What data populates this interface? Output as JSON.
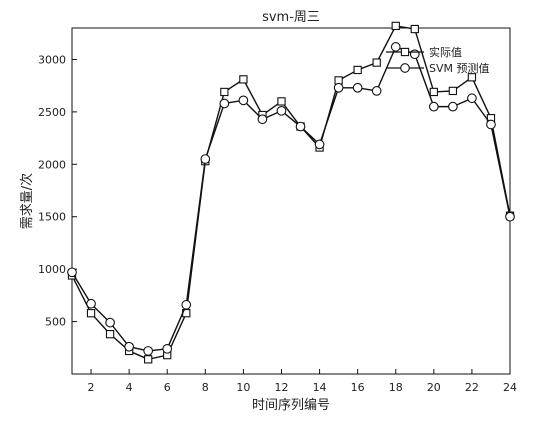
{
  "chart_data": {
    "type": "line",
    "title": "svm-周三",
    "xlabel": "时间序列编号",
    "ylabel": "需求量/次",
    "xlim": [
      1,
      24
    ],
    "ylim": [
      0,
      3300
    ],
    "xticks": [
      2,
      4,
      6,
      8,
      10,
      12,
      14,
      16,
      18,
      20,
      22,
      24
    ],
    "yticks": [
      500,
      1000,
      1500,
      2000,
      2500,
      3000
    ],
    "grid": false,
    "legend_position": "top-right",
    "x": [
      1,
      2,
      3,
      4,
      5,
      6,
      7,
      8,
      9,
      10,
      11,
      12,
      13,
      14,
      15,
      16,
      17,
      18,
      19,
      20,
      21,
      22,
      23,
      24
    ],
    "series": [
      {
        "name": "实际值",
        "marker": "square",
        "color": "#111111",
        "values": [
          940,
          580,
          380,
          220,
          140,
          180,
          580,
          2030,
          2690,
          2810,
          2470,
          2600,
          2360,
          2160,
          2800,
          2900,
          2970,
          3320,
          3290,
          2690,
          2700,
          2830,
          2440,
          1510
        ]
      },
      {
        "name": "SVM 预测值",
        "marker": "circle",
        "color": "#111111",
        "values": [
          970,
          670,
          490,
          260,
          220,
          240,
          660,
          2050,
          2580,
          2610,
          2430,
          2510,
          2360,
          2190,
          2730,
          2730,
          2700,
          3120,
          3050,
          2550,
          2550,
          2630,
          2380,
          1500
        ]
      }
    ]
  }
}
